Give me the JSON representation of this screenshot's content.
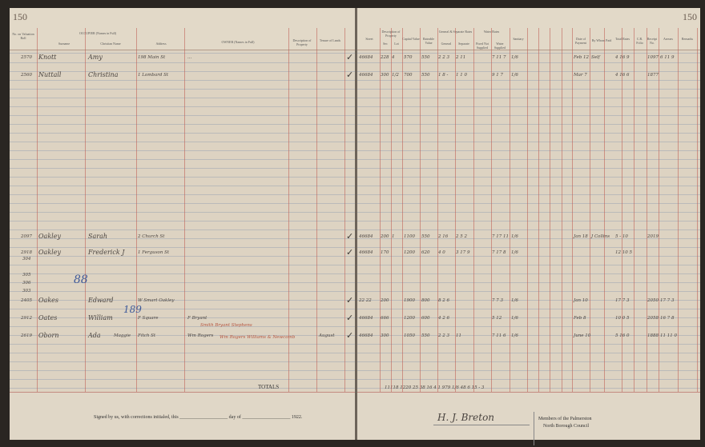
{
  "page_numbers": {
    "left": "150",
    "right": "150"
  },
  "left_headers": {
    "no": "No. on Valuation Roll",
    "occupier": "OCCUPIER (Names in Full)",
    "surname": "Surname",
    "christian": "Christian Name",
    "address": "Address",
    "owner": "OWNER (Names in Full)",
    "description": "Description of Property",
    "tenure": "Tenure of Lands"
  },
  "right_headers": {
    "street": "Street",
    "desc": "Description of Property",
    "sec": "Sec",
    "lot": "Lot",
    "capital": "Capital Value",
    "rateable": "Rateable Value",
    "gen_rates": "General & Separate Rates",
    "general": "General",
    "separate": "Separate",
    "water_rates": "Water Rates",
    "fixed": "Fixed Not Supplied",
    "supplied": "Water Supplied",
    "sanitary": "Sanitary",
    "total": "Total Rates",
    "date": "Date of Payment",
    "by_whom": "By Whom Paid",
    "folio": "C.R. Folio",
    "receipt": "Receipt No.",
    "arrears": "Arrears",
    "remarks": "Remarks"
  },
  "entries": [
    {
      "no": "2570",
      "surname": "Knott",
      "christian": "Amy",
      "address": "198 Main St",
      "owner": "...",
      "street": "46684",
      "sec": "228",
      "lot": "4",
      "capital": "570",
      "rateable": "550",
      "general": "2 2 3",
      "separate": "2 11",
      "supplied": "7 11 7",
      "sanitary": "1/6",
      "total": "4 16 9",
      "date": "Feb 12",
      "by_whom": "Self",
      "receipt": "1097",
      "arrears": "6 11 9"
    },
    {
      "no": "2560",
      "surname": "Nuttall",
      "christian": "Christina",
      "address": "1 Lombard St",
      "street": "46684",
      "sec": "300",
      "lot": "1/2",
      "capital": "700",
      "rateable": "550",
      "general": "1 8 -",
      "separate": "1 1 0",
      "supplied": "9 1 7",
      "sanitary": "1/6",
      "total": "4 16 6",
      "date": "Mar 7",
      "receipt": "1877"
    },
    {
      "no": "2097",
      "surname": "Oakley",
      "christian": "Sarah",
      "address": "2 Church St",
      "street": "46684",
      "sec": "200",
      "lot": "1",
      "capital": "1100",
      "rateable": "550",
      "general": "2 16",
      "separate": "2 5 2",
      "supplied": "7 17 11",
      "sanitary": "1/6",
      "total": "5 - 10",
      "date": "Jan 18",
      "by_whom": "J Collins",
      "receipt": "2019"
    },
    {
      "no": "2918",
      "surname": "Oakley",
      "christian": "Frederick J",
      "address": "1 Ferguson St",
      "street": "46684",
      "sec": "170",
      "capital": "1200",
      "rateable": "620",
      "general": "4 0",
      "separate": "3 17 9",
      "supplied": "7 17 8",
      "sanitary": "1/6",
      "total": "12 10 5"
    },
    {
      "no": "2405",
      "surname": "Oakes",
      "christian": "Edward",
      "address": "W Smart Oakley",
      "street": "22 22",
      "sec": "200",
      "capital": "1900",
      "rateable": "800",
      "general": "8 2 6",
      "supplied": "7 7 3",
      "sanitary": "1/6",
      "total": "17 7 3",
      "date": "Jan 10",
      "receipt": "2050",
      "arrears": "17 7 3"
    },
    {
      "no": "2912",
      "surname": "Oates",
      "christian": "William",
      "address": "F Square",
      "owner": "F Bryant",
      "street": "46684",
      "sec": "666",
      "capital": "1200",
      "rateable": "600",
      "general": "4 2 6",
      "supplied": "5 12",
      "sanitary": "1/6",
      "total": "10 0 5",
      "date": "Feb 8",
      "receipt": "2058",
      "arrears": "16 7 8"
    },
    {
      "no": "2619",
      "surname": "Oborn",
      "christian": "Ada",
      "christian2": "Maggie",
      "address": "Fitch St",
      "owner": "Wm Rogers",
      "tenure": "August",
      "street": "46684",
      "sec": "300",
      "capital": "1050",
      "rateable": "550",
      "general": "2 2 3",
      "separate": "11",
      "supplied": "7 11 6",
      "sanitary": "1/6",
      "total": "5 16 0",
      "date": "June 10",
      "receipt": "1888",
      "arrears": "11 11 0"
    }
  ],
  "sub_numbers": [
    "304",
    "305",
    "306",
    "303"
  ],
  "annotations": {
    "blue1": "88",
    "blue2": "189",
    "correction": "Smith Bryant Stephens",
    "correction2": "Wm Rogers Williams & Newcomb"
  },
  "totals": {
    "label": "TOTALS",
    "values": "11118  1220 25   38 16   4 1  979 1/6   48 6 15 - 3"
  },
  "footer": {
    "signed": "Signed by us, with corrections initialed, this",
    "day": "day of",
    "year": "1922.",
    "signature": "H. J. Breton",
    "members": "Members of the Palmerston",
    "council": "North Borough Council"
  }
}
